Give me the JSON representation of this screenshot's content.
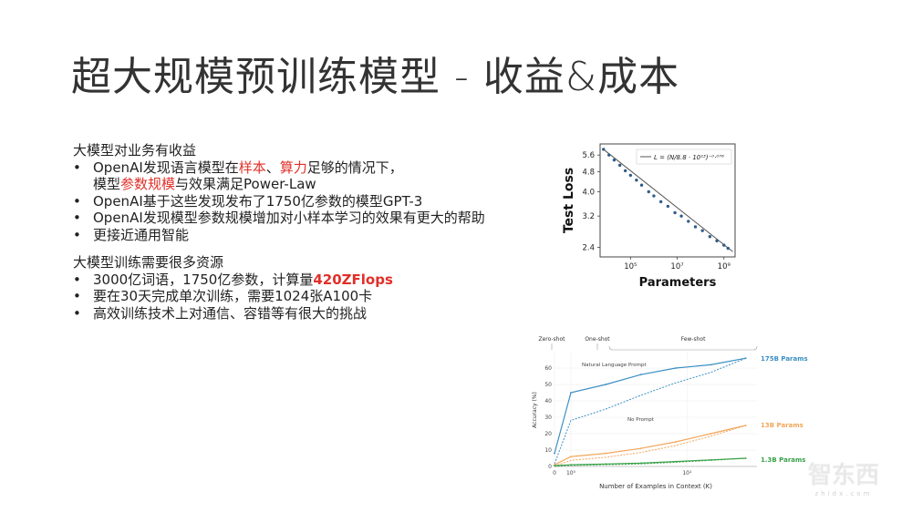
{
  "slide": {
    "title": "超大规模预训练模型 - 收益&成本",
    "section1": {
      "heading": "大模型对业务有收益",
      "b1": {
        "p1": "OpenAI发现语言模型在",
        "r1": "样本",
        "p2": "、",
        "r2": "算力",
        "p3": "足够的情况下，",
        "p4": "模型",
        "r3": "参数规模",
        "p5": "与效果满足Power-Law"
      },
      "b2": "OpenAI基于这些发现发布了1750亿参数的模型GPT-3",
      "b3": "OpenAI发现模型参数规模增加对小样本学习的效果有更大的帮助",
      "b4": "更接近通用智能"
    },
    "section2": {
      "heading": "大模型训练需要很多资源",
      "b1": {
        "p1": "3000亿词语，1750亿参数，计算量",
        "r1": "420ZFlops"
      },
      "b2": "要在30天完成单次训练，需要1024张A100卡",
      "b3": "高效训练技术上对通信、容错等有很大的挑战"
    }
  },
  "chart_data": [
    {
      "type": "scatter",
      "xlabel": "Parameters",
      "ylabel": "Test Loss",
      "xscale": "log",
      "yscale": "log",
      "xlim": [
        5000,
        3000000000
      ],
      "ylim": [
        2.2,
        6.2
      ],
      "xticks": [
        "10⁵",
        "10⁷",
        "10⁹"
      ],
      "yticks": [
        "5.6",
        "4.8",
        "4.0",
        "3.2",
        "2.4"
      ],
      "legend": "L = (N/8.8 · 10¹³)⁻⁰·⁰⁷⁶",
      "legend_position": "top-right",
      "x": [
        7000,
        12000,
        20000,
        35000,
        60000,
        100000,
        180000,
        300000,
        600000,
        1000000,
        2000000,
        4000000,
        8000000,
        15000000,
        30000000,
        60000000,
        120000000,
        250000000,
        500000000,
        1000000000,
        1500000000
      ],
      "y": [
        5.9,
        5.6,
        5.35,
        5.1,
        4.85,
        4.65,
        4.45,
        4.25,
        4.0,
        3.85,
        3.65,
        3.5,
        3.3,
        3.2,
        3.05,
        2.9,
        2.8,
        2.65,
        2.55,
        2.45,
        2.38
      ]
    },
    {
      "type": "line",
      "xlabel": "Number of Examples in Context (K)",
      "ylabel": "Accuracy (%)",
      "xscale": "log",
      "ylim": [
        0,
        70
      ],
      "yticks": [
        "0",
        "10",
        "20",
        "30",
        "40",
        "50",
        "60"
      ],
      "xticks": [
        "0",
        "10⁰",
        "10¹"
      ],
      "regions": [
        "Zero-shot",
        "One-shot",
        "Few-shot"
      ],
      "annotations": [
        "Natural Language Prompt",
        "No Prompt"
      ],
      "series": [
        {
          "name": "175B Params",
          "color": "#3b8fc4",
          "x": [
            0,
            1,
            2,
            4,
            8,
            16,
            32
          ],
          "y": [
            8,
            45,
            50,
            56,
            60,
            62,
            66
          ]
        },
        {
          "name": "13B Params",
          "color": "#f2a65a",
          "x": [
            0,
            1,
            2,
            4,
            8,
            16,
            32
          ],
          "y": [
            1,
            6,
            8,
            11,
            15,
            20,
            25
          ]
        },
        {
          "name": "1.3B Params",
          "color": "#3aa24a",
          "x": [
            0,
            1,
            2,
            4,
            8,
            16,
            32
          ],
          "y": [
            0.5,
            1,
            1.5,
            2,
            3,
            4,
            5
          ]
        }
      ]
    }
  ],
  "watermark": {
    "logo": "智东西",
    "sub": "zhidx.com"
  }
}
